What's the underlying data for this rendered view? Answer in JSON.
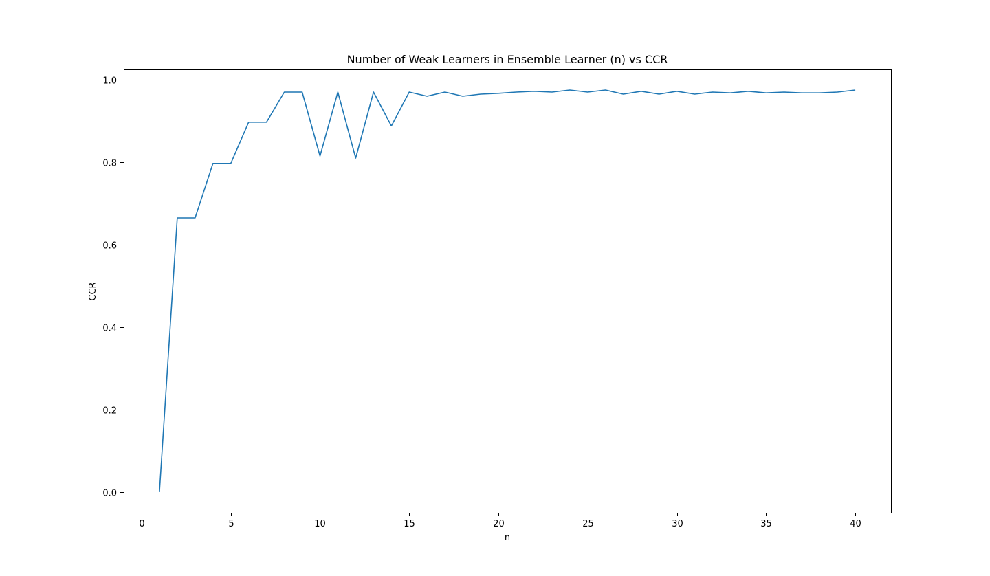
{
  "chart_data": {
    "type": "line",
    "title": "Number of Weak Learners in Ensemble Learner (n) vs CCR",
    "xlabel": "n",
    "ylabel": "CCR",
    "xlim": [
      -1,
      42
    ],
    "ylim": [
      -0.05,
      1.025
    ],
    "xticks": [
      0,
      5,
      10,
      15,
      20,
      25,
      30,
      35,
      40
    ],
    "xtick_labels": [
      "0",
      "5",
      "10",
      "15",
      "20",
      "25",
      "30",
      "35",
      "40"
    ],
    "yticks": [
      0.0,
      0.2,
      0.4,
      0.6,
      0.8,
      1.0
    ],
    "ytick_labels": [
      "0.0",
      "0.2",
      "0.4",
      "0.6",
      "0.8",
      "1.0"
    ],
    "grid": false,
    "legend": "none",
    "series": [
      {
        "color": "#1f77b4",
        "x": [
          1,
          2,
          3,
          4,
          5,
          6,
          7,
          8,
          9,
          10,
          11,
          12,
          13,
          14,
          15,
          16,
          17,
          18,
          19,
          20,
          21,
          22,
          23,
          24,
          25,
          26,
          27,
          28,
          29,
          30,
          31,
          32,
          33,
          34,
          35,
          36,
          37,
          38,
          39,
          40
        ],
        "y": [
          0.0,
          0.665,
          0.665,
          0.797,
          0.797,
          0.897,
          0.897,
          0.97,
          0.97,
          0.815,
          0.97,
          0.81,
          0.97,
          0.888,
          0.97,
          0.96,
          0.97,
          0.96,
          0.965,
          0.967,
          0.97,
          0.972,
          0.97,
          0.975,
          0.97,
          0.975,
          0.965,
          0.972,
          0.965,
          0.972,
          0.965,
          0.97,
          0.968,
          0.972,
          0.968,
          0.97,
          0.968,
          0.968,
          0.97,
          0.975
        ]
      }
    ]
  }
}
